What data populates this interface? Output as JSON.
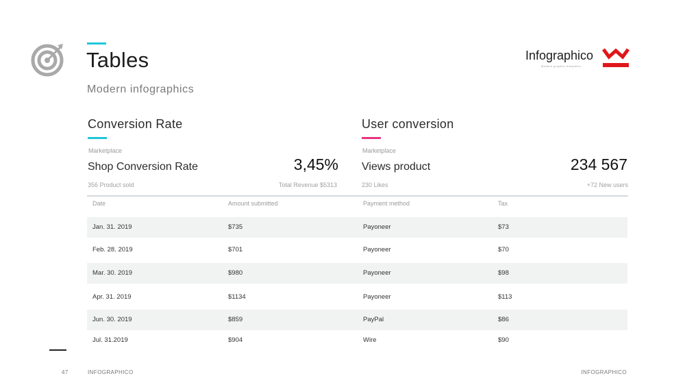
{
  "header": {
    "title": "Tables",
    "subtitle": "Modern infographics",
    "accent_color": "#1fc6d9",
    "icon": "target-icon"
  },
  "logo": {
    "name": "Infographico",
    "tagline": "Modern graphic templates",
    "mark_color": "#e0161b"
  },
  "panels": [
    {
      "title": "Conversion Rate",
      "accent_color": "#1fc6d9",
      "category": "Marketplace",
      "metric_label": "Shop Conversion Rate",
      "metric_value": "3,45%",
      "note_left": "356 Product sold",
      "note_right": "Total Revenue $5313"
    },
    {
      "title": "User conversion",
      "accent_color": "#e8357f",
      "category": "Marketplace",
      "metric_label": "Views product",
      "metric_value": "234 567",
      "note_left": "230 Likes",
      "note_right": "+72 New users"
    }
  ],
  "table": {
    "columns": [
      "Date",
      "Amount submitted",
      "Payment method",
      "Tax"
    ],
    "rows": [
      [
        "Jan. 31. 2019",
        "$735",
        "Payoneer",
        "$73"
      ],
      [
        "Feb. 28. 2019",
        "$701",
        "Payoneer",
        "$70"
      ],
      [
        "Mar. 30. 2019",
        "$980",
        "Payoneer",
        "$98"
      ],
      [
        "Apr. 31. 2019",
        "$1134",
        "Payoneer",
        "$113"
      ],
      [
        "Jun. 30. 2019",
        "$859",
        "PayPal",
        "$86"
      ],
      [
        "Jul. 31.2019",
        "$904",
        "Wire",
        "$90"
      ]
    ]
  },
  "footer": {
    "page_number": "47",
    "left_brand": "INFOGRAPHICO",
    "right_brand": "INFOGRAPHICO"
  }
}
